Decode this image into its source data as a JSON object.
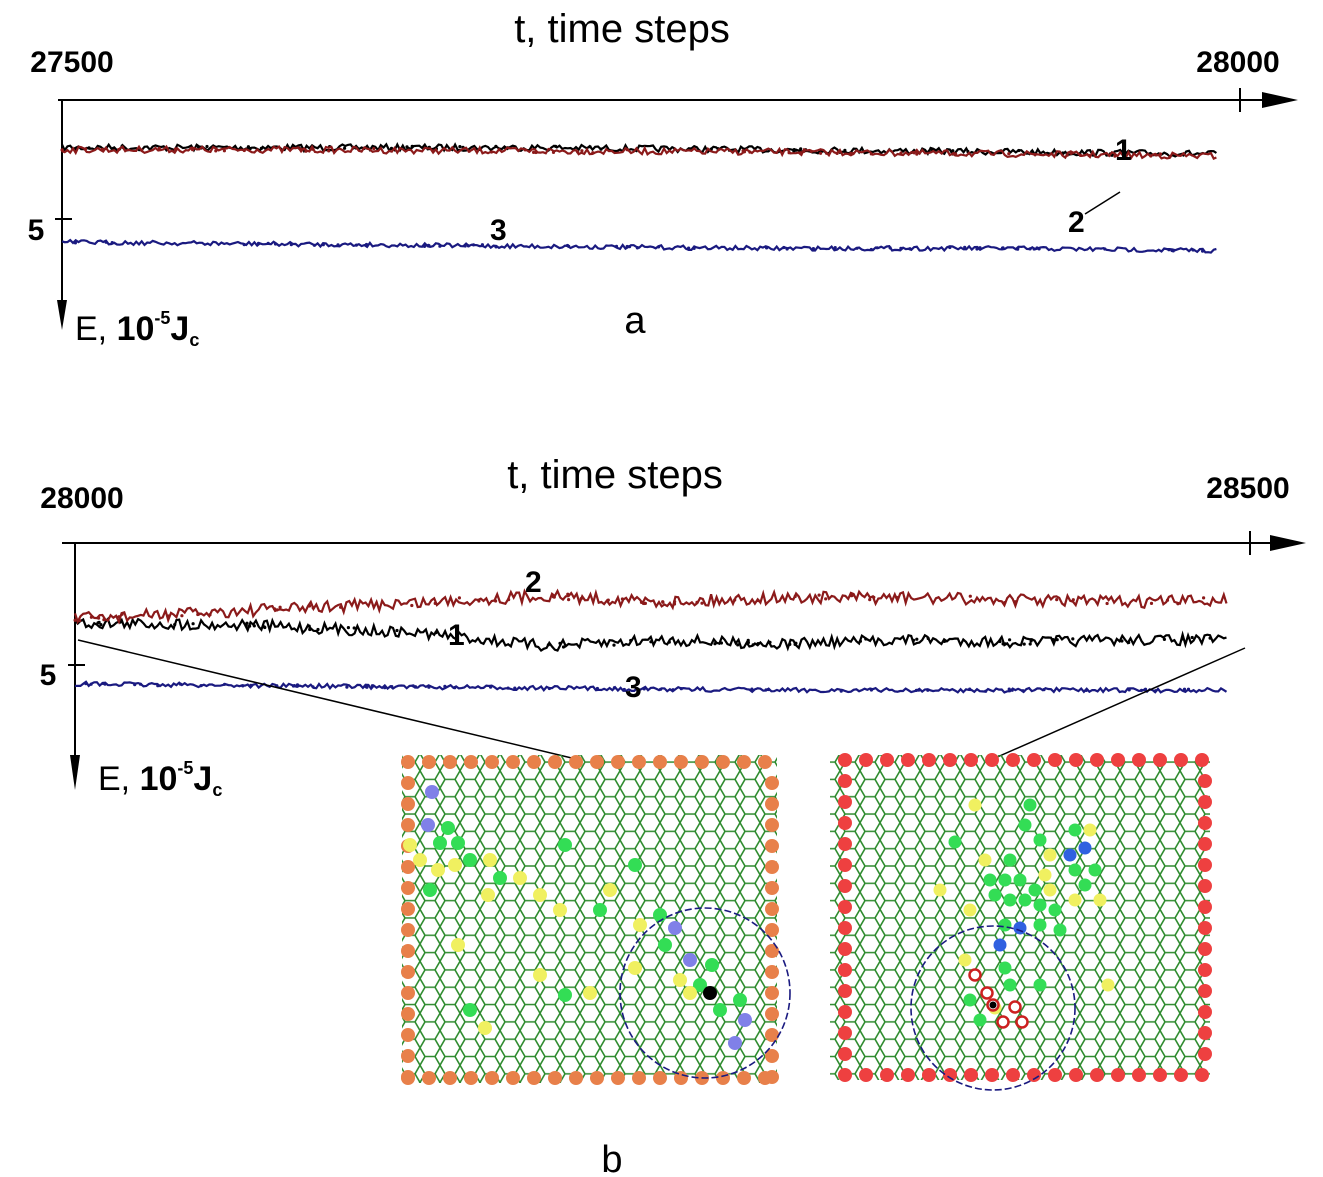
{
  "chart_data": [
    {
      "type": "line",
      "panel_label": "a",
      "title": "t, time steps",
      "x_start_label": "27500",
      "x_end_label": "28000",
      "xlim": [
        27500,
        28000
      ],
      "ylabel": {
        "prefix": "E, ",
        "mantissa": "10",
        "exponent": "-5",
        "unit": "J",
        "sub": "c"
      },
      "ytick_label": "5",
      "ytick_value": 5,
      "ylim": [
        3.2,
        8.0
      ],
      "series": [
        {
          "label": "1",
          "color": "#000000",
          "x": [
            27500,
            27600,
            27700,
            27800,
            27900,
            27990
          ],
          "y": [
            6.7,
            6.7,
            6.7,
            6.65,
            6.6,
            6.55
          ]
        },
        {
          "label": "2",
          "color": "#8b1a1a",
          "x": [
            27500,
            27600,
            27700,
            27800,
            27900,
            27990
          ],
          "y": [
            6.65,
            6.65,
            6.62,
            6.6,
            6.55,
            6.5
          ]
        },
        {
          "label": "3",
          "color": "#1a1a80",
          "x": [
            27500,
            27600,
            27700,
            27800,
            27900,
            27990
          ],
          "y": [
            4.45,
            4.4,
            4.35,
            4.3,
            4.3,
            4.25
          ]
        }
      ]
    },
    {
      "type": "line",
      "panel_label": "b",
      "title": "t, time steps",
      "x_start_label": "28000",
      "x_end_label": "28500",
      "xlim": [
        28000,
        28500
      ],
      "ylabel": {
        "prefix": "E, ",
        "mantissa": "10",
        "exponent": "-5",
        "unit": "J",
        "sub": "c"
      },
      "ytick_label": "5",
      "ytick_value": 5,
      "ylim": [
        3.2,
        8.0
      ],
      "series": [
        {
          "label": "1",
          "color": "#000000",
          "x": [
            28000,
            28075,
            28150,
            28200,
            28250,
            28300,
            28350,
            28400,
            28450,
            28490
          ],
          "y": [
            6.0,
            5.95,
            5.75,
            5.45,
            5.6,
            5.5,
            5.6,
            5.55,
            5.6,
            5.6
          ]
        },
        {
          "label": "2",
          "color": "#8b1a1a",
          "x": [
            28000,
            28075,
            28150,
            28200,
            28250,
            28300,
            28350,
            28400,
            28450,
            28490
          ],
          "y": [
            6.1,
            6.3,
            6.5,
            6.65,
            6.5,
            6.6,
            6.6,
            6.55,
            6.5,
            6.55
          ]
        },
        {
          "label": "3",
          "color": "#1a1a80",
          "x": [
            28000,
            28100,
            28200,
            28300,
            28400,
            28490
          ],
          "y": [
            4.55,
            4.5,
            4.45,
            4.4,
            4.4,
            4.4
          ]
        }
      ]
    }
  ],
  "insets": {
    "bond_color": "#2e8b2e",
    "left": {
      "edge_color": "#e8804a",
      "defect_colors": {
        "green": "#33dd55",
        "yellow": "#f0f060",
        "blue": "#8080e8",
        "black": "#000000"
      }
    },
    "right": {
      "edge_color": "#ee4040",
      "defect_colors": {
        "green": "#33dd55",
        "yellow": "#f0f060",
        "blue": "#3060e0",
        "ring": "#cc2020"
      }
    },
    "circle_color": "#1a1a80"
  }
}
